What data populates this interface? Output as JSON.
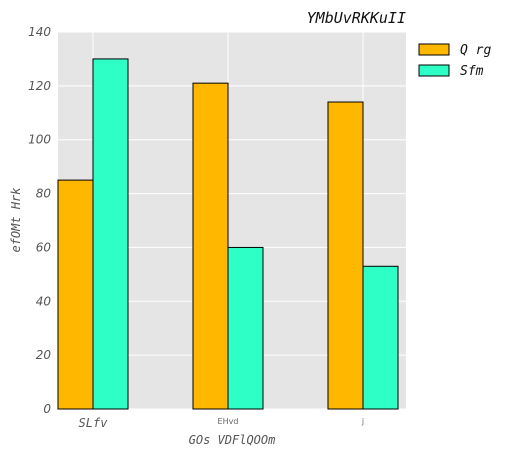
{
  "chart_data": {
    "type": "bar",
    "title": "YMbUvRKKuII",
    "xlabel": "GOs VDFlQOOm",
    "ylabel": "efOMt Hrk",
    "categories": [
      "SLfv",
      "EHvd",
      "j"
    ],
    "series": [
      {
        "name": "Q rg",
        "values": [
          85,
          121,
          114
        ],
        "color": "#FFB700"
      },
      {
        "name": "Sfm",
        "values": [
          130,
          60,
          53
        ],
        "color": "#2EFFC6"
      }
    ],
    "ylim": [
      0,
      140
    ],
    "yticks": [
      0,
      20,
      40,
      60,
      80,
      100,
      120,
      140
    ],
    "grid": true,
    "legend_position": "outside-top-right",
    "background": "#E5E5E5"
  }
}
